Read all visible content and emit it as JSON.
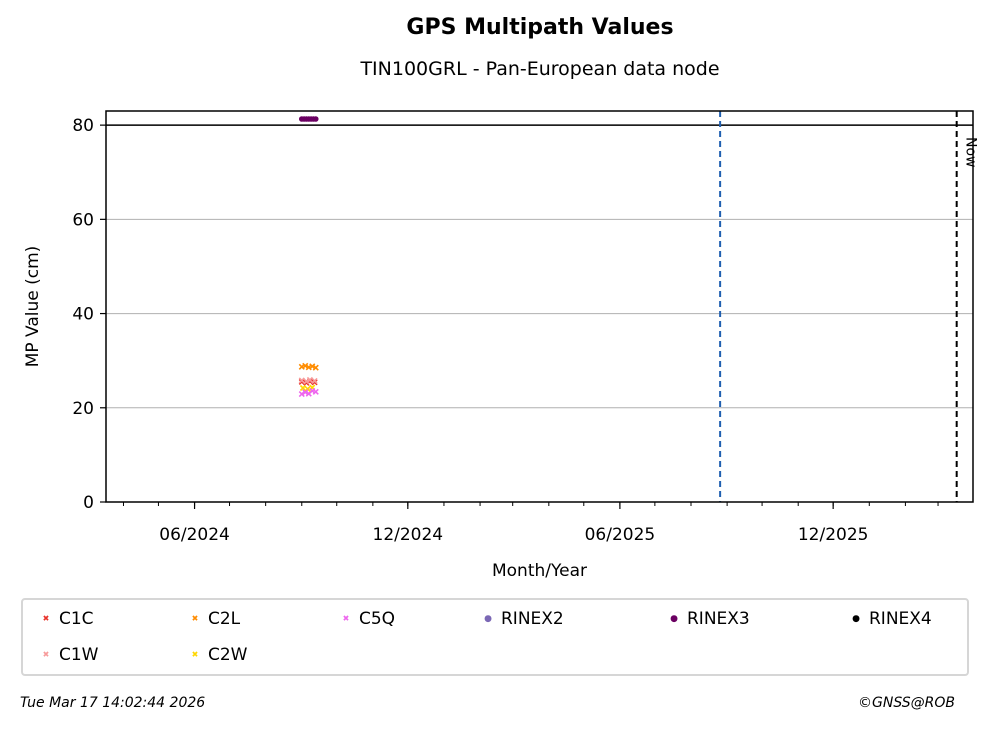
{
  "chart_data": {
    "type": "scatter",
    "title": "GPS Multipath Values",
    "subtitle": "TIN100GRL - Pan-European data node",
    "xlabel": "Month/Year",
    "ylabel": "MP Value (cm)",
    "ylim": [
      0,
      83
    ],
    "xlim": [
      "2024-03-17",
      "2026-03-31"
    ],
    "yticks": [
      0,
      20,
      40,
      60,
      80
    ],
    "xticks": [
      {
        "date": "2024-06-01",
        "label": "06/2024"
      },
      {
        "date": "2024-12-01",
        "label": "12/2024"
      },
      {
        "date": "2025-06-01",
        "label": "06/2025"
      },
      {
        "date": "2025-12-01",
        "label": "12/2025"
      }
    ],
    "grid": "horizontal",
    "reference_lines": [
      {
        "type": "horizontal",
        "y": 80,
        "color": "#000000",
        "style": "solid"
      },
      {
        "type": "vertical",
        "date": "2025-08-26",
        "color": "#1f5fb0",
        "style": "dashed"
      },
      {
        "type": "vertical",
        "date": "2026-03-17",
        "color": "#000000",
        "style": "dashed",
        "label": "Now"
      }
    ],
    "series": [
      {
        "name": "C1C",
        "marker": "x",
        "color": "#e8322a",
        "points": [
          {
            "x": "2024-09-01",
            "y": 25.5
          },
          {
            "x": "2024-09-05",
            "y": 25.3
          },
          {
            "x": "2024-09-08",
            "y": 25.6
          },
          {
            "x": "2024-09-12",
            "y": 25.4
          }
        ]
      },
      {
        "name": "C1W",
        "marker": "x",
        "color": "#f79b9b",
        "points": [
          {
            "x": "2024-09-01",
            "y": 25.8
          },
          {
            "x": "2024-09-05",
            "y": 25.6
          },
          {
            "x": "2024-09-08",
            "y": 25.9
          },
          {
            "x": "2024-09-12",
            "y": 25.7
          }
        ]
      },
      {
        "name": "C2L",
        "marker": "x",
        "color": "#ff8c00",
        "points": [
          {
            "x": "2024-09-01",
            "y": 28.7
          },
          {
            "x": "2024-09-04",
            "y": 28.9
          },
          {
            "x": "2024-09-07",
            "y": 28.6
          },
          {
            "x": "2024-09-10",
            "y": 28.8
          },
          {
            "x": "2024-09-13",
            "y": 28.5
          }
        ]
      },
      {
        "name": "C2W",
        "marker": "x",
        "color": "#ffd700",
        "points": [
          {
            "x": "2024-09-02",
            "y": 24.2
          },
          {
            "x": "2024-09-06",
            "y": 24.0
          },
          {
            "x": "2024-09-10",
            "y": 24.3
          }
        ]
      },
      {
        "name": "C5Q",
        "marker": "x",
        "color": "#ee66ee",
        "points": [
          {
            "x": "2024-09-01",
            "y": 22.9
          },
          {
            "x": "2024-09-04",
            "y": 23.3
          },
          {
            "x": "2024-09-07",
            "y": 23.0
          },
          {
            "x": "2024-09-10",
            "y": 23.6
          },
          {
            "x": "2024-09-13",
            "y": 23.4
          }
        ]
      },
      {
        "name": "RINEX2",
        "marker": "dot",
        "color": "#7b68b5",
        "points": []
      },
      {
        "name": "RINEX3",
        "marker": "dot",
        "color": "#6b0062",
        "points": [
          {
            "x": "2024-09-01",
            "y": 81.3
          },
          {
            "x": "2024-09-03",
            "y": 81.3
          },
          {
            "x": "2024-09-05",
            "y": 81.3
          },
          {
            "x": "2024-09-07",
            "y": 81.3
          },
          {
            "x": "2024-09-09",
            "y": 81.3
          },
          {
            "x": "2024-09-11",
            "y": 81.3
          },
          {
            "x": "2024-09-13",
            "y": 81.3
          }
        ]
      },
      {
        "name": "RINEX4",
        "marker": "dot",
        "color": "#000000",
        "points": []
      }
    ],
    "legend_order": [
      "C1C",
      "C2L",
      "C5Q",
      "RINEX2",
      "RINEX3",
      "RINEX4",
      "C1W",
      "C2W"
    ]
  },
  "footer": {
    "timestamp": "Tue Mar 17 14:02:44 2026",
    "copyright": "©GNSS@ROB"
  }
}
